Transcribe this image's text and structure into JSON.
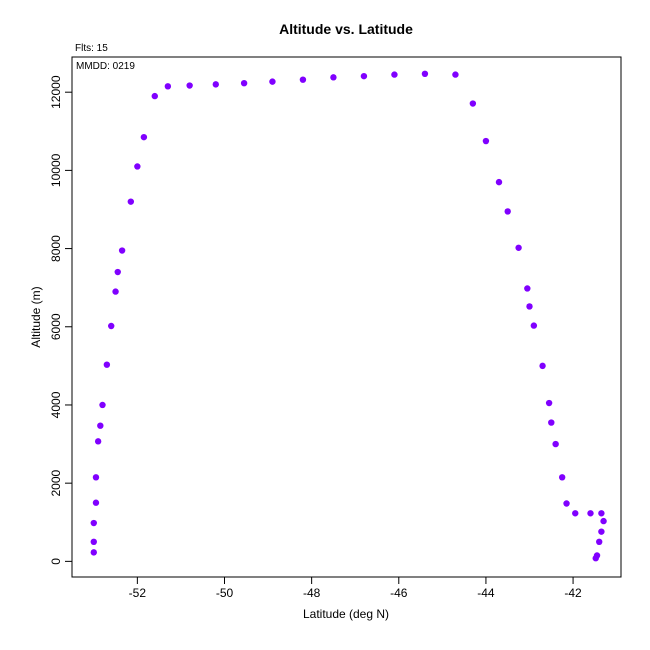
{
  "chart_data": {
    "type": "scatter",
    "title": "Altitude vs. Latitude",
    "annotations": {
      "flts": "Flts: 15",
      "mmdd": "MMDD: 0219"
    },
    "xlabel": "Latitude (deg N)",
    "ylabel": "Altitude (m)",
    "xlim": [
      -53.5,
      -40.9
    ],
    "ylim": [
      -400,
      12900
    ],
    "xticks": [
      -52,
      -50,
      -48,
      -46,
      -44,
      -42
    ],
    "yticks": [
      0,
      2000,
      4000,
      6000,
      8000,
      10000,
      12000
    ],
    "grid": false,
    "series": [
      {
        "color": "#8000ff",
        "x": [
          -53.0,
          -53.0,
          -53.0,
          -52.95,
          -52.95,
          -52.9,
          -52.85,
          -52.8,
          -52.7,
          -52.6,
          -52.5,
          -52.45,
          -52.35,
          -52.15,
          -52.0,
          -51.85,
          -51.6,
          -51.3,
          -50.8,
          -50.2,
          -49.55,
          -48.9,
          -48.2,
          -47.5,
          -46.8,
          -46.1,
          -45.4,
          -44.7,
          -44.3,
          -44.0,
          -43.7,
          -43.5,
          -43.25,
          -43.05,
          -43.0,
          -42.9,
          -42.7,
          -42.55,
          -42.5,
          -42.4,
          -42.25,
          -42.15,
          -41.95,
          -41.6,
          -41.35,
          -41.3,
          -41.35,
          -41.4,
          -41.45,
          -41.48
        ],
        "y": [
          230,
          500,
          980,
          1500,
          2150,
          3070,
          3470,
          4000,
          5030,
          6020,
          6900,
          7400,
          7950,
          9200,
          10100,
          10850,
          11900,
          12150,
          12170,
          12200,
          12230,
          12270,
          12320,
          12380,
          12410,
          12450,
          12470,
          12450,
          11710,
          10750,
          9700,
          8950,
          8020,
          6980,
          6520,
          6030,
          5000,
          4050,
          3550,
          3000,
          2150,
          1480,
          1230,
          1230,
          1230,
          1030,
          760,
          500,
          150,
          80
        ]
      }
    ]
  }
}
